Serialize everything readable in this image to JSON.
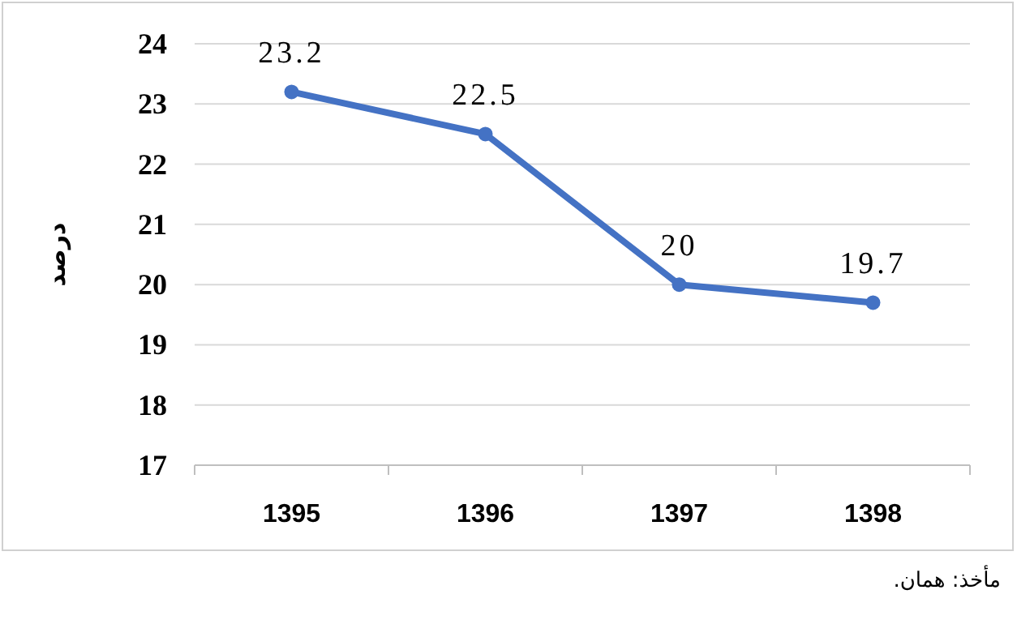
{
  "chart_data": {
    "type": "line",
    "ylabel": "درصد",
    "annotations": [
      "مأخذ: همان."
    ],
    "categories": [
      "1395",
      "1396",
      "1397",
      "1398"
    ],
    "values": [
      23.2,
      22.5,
      20,
      19.7
    ],
    "color": "#4472c4",
    "ylim": [
      17,
      24
    ],
    "yticks": [
      17,
      18,
      19,
      20,
      21,
      22,
      23,
      24
    ],
    "grid": "y",
    "marker": "circle",
    "line_style": "solid",
    "data_labels": true
  }
}
